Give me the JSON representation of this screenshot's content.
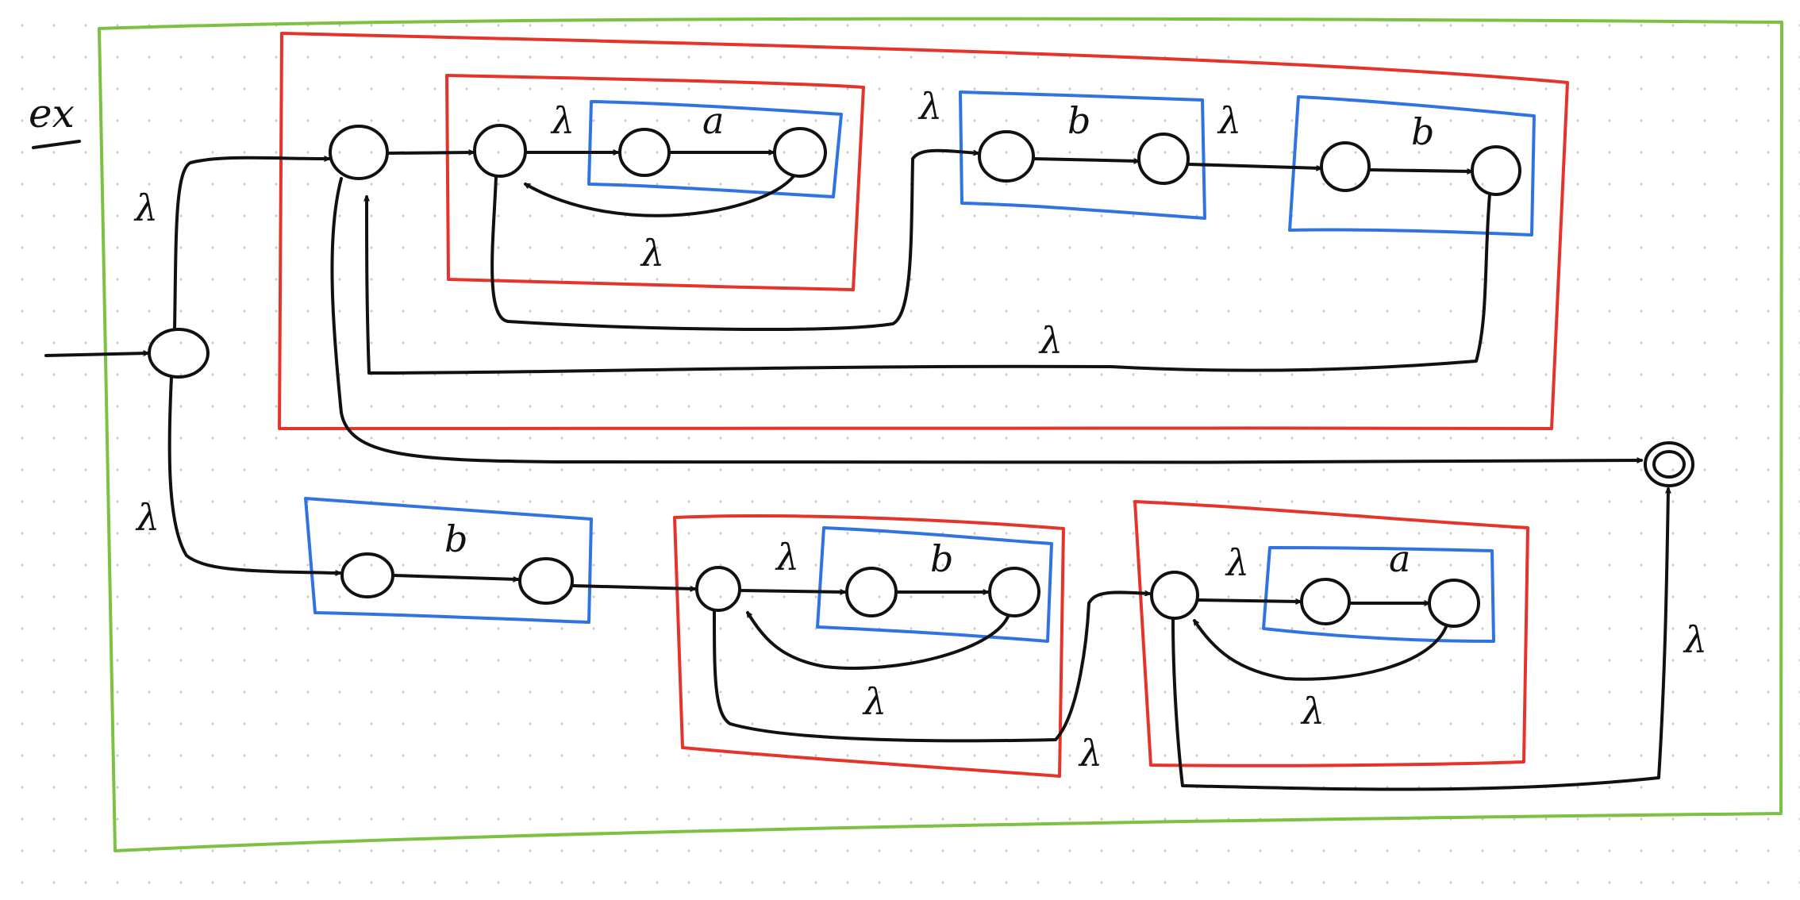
{
  "colors": {
    "ink": "#111111",
    "outer_box": "#7cc142",
    "star_box": "#e5342a",
    "union_box": "#2f74e0",
    "background": "#ffffff",
    "grid_dots": "#c9c9c9"
  },
  "diagram": {
    "tag": "ex",
    "epsilon": "λ",
    "symbol_a": "a",
    "symbol_b": "b"
  }
}
